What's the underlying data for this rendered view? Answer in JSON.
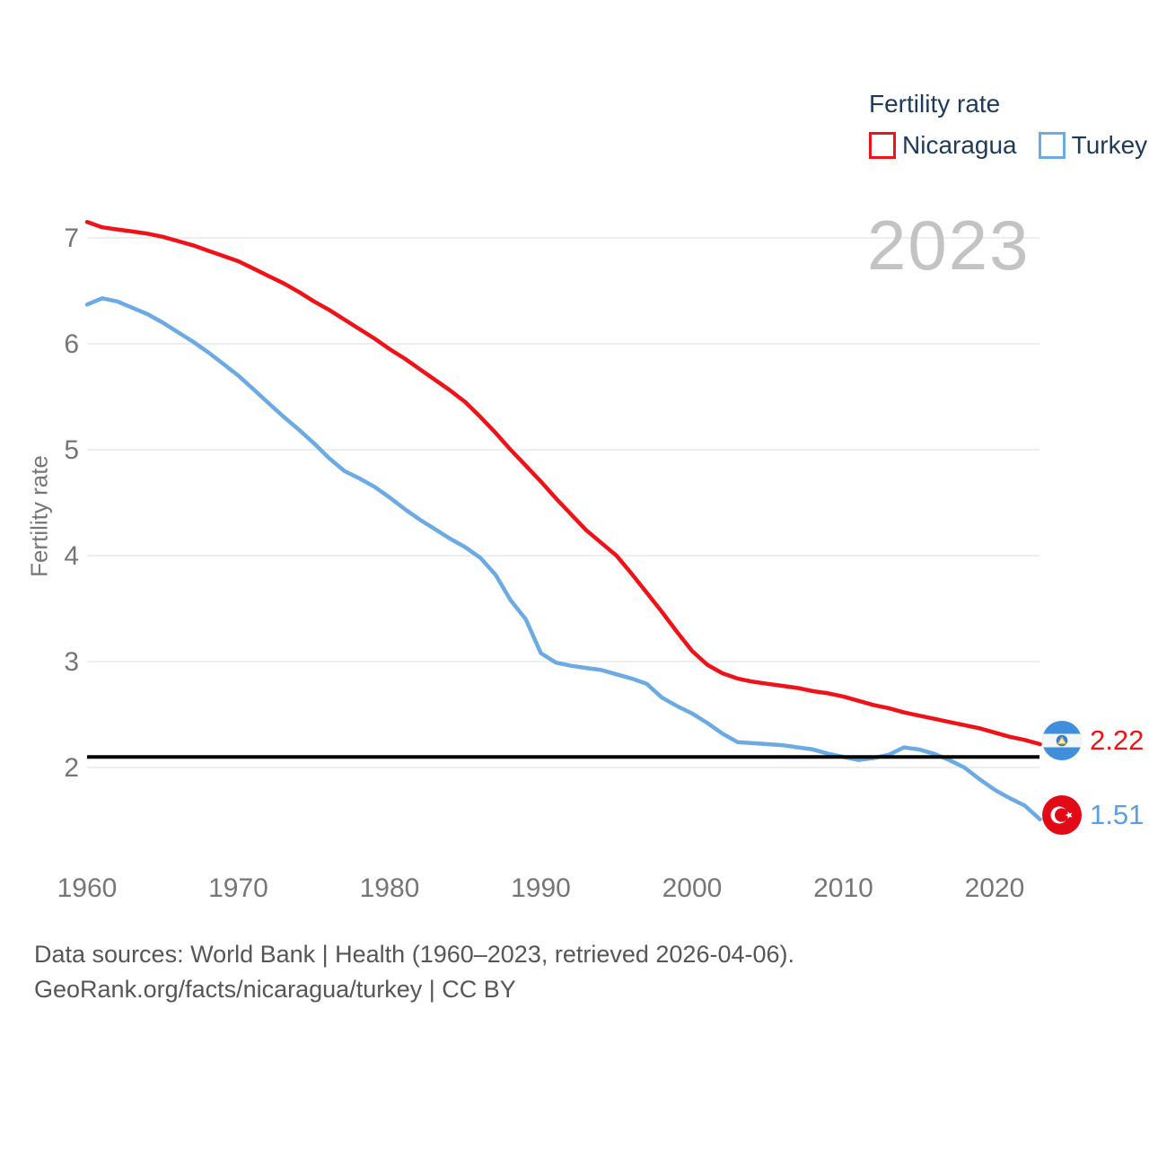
{
  "watermark": "2023",
  "y_axis_title": "Fertility rate",
  "legend": {
    "title": "Fertility rate",
    "items": [
      {
        "label": "Nicaragua",
        "color": "#ef1319"
      },
      {
        "label": "Turkey",
        "color": "#6caae4"
      }
    ]
  },
  "end_labels": {
    "nicaragua": {
      "value": "2.22",
      "flag": "nicaragua-flag"
    },
    "turkey": {
      "value": "1.51",
      "flag": "turkey-flag"
    }
  },
  "footer": {
    "line1": "Data sources: World Bank | Health (1960–2023, retrieved 2026-04-06).",
    "line2": "GeoRank.org/facts/nicaragua/turkey | CC BY"
  },
  "chart_data": {
    "type": "line",
    "title": "Fertility rate",
    "ylabel": "Fertility rate",
    "xlim": [
      1960,
      2023
    ],
    "ylim": [
      1.4,
      7.3
    ],
    "grid": "horizontal",
    "legend_position": "top-right",
    "y_ticks": [
      2,
      3,
      4,
      5,
      6,
      7
    ],
    "x_label_ticks": [
      1960,
      1970,
      1980,
      1990,
      2000,
      2010,
      2020
    ],
    "baseline": {
      "value": 2.1,
      "color": "#000000"
    },
    "years": [
      1960,
      1961,
      1962,
      1963,
      1964,
      1965,
      1966,
      1967,
      1968,
      1969,
      1970,
      1971,
      1972,
      1973,
      1974,
      1975,
      1976,
      1977,
      1978,
      1979,
      1980,
      1981,
      1982,
      1983,
      1984,
      1985,
      1986,
      1987,
      1988,
      1989,
      1990,
      1991,
      1992,
      1993,
      1994,
      1995,
      1996,
      1997,
      1998,
      1999,
      2000,
      2001,
      2002,
      2003,
      2004,
      2005,
      2006,
      2007,
      2008,
      2009,
      2010,
      2011,
      2012,
      2013,
      2014,
      2015,
      2016,
      2017,
      2018,
      2019,
      2020,
      2021,
      2022,
      2023
    ],
    "series": [
      {
        "name": "Nicaragua",
        "color": "#ef1319",
        "end_value": 2.22,
        "values": [
          7.15,
          7.1,
          7.08,
          7.06,
          7.04,
          7.01,
          6.97,
          6.93,
          6.88,
          6.83,
          6.78,
          6.71,
          6.64,
          6.57,
          6.49,
          6.4,
          6.32,
          6.23,
          6.14,
          6.05,
          5.95,
          5.86,
          5.76,
          5.66,
          5.56,
          5.45,
          5.31,
          5.16,
          5.0,
          4.85,
          4.7,
          4.54,
          4.39,
          4.24,
          4.12,
          4.0,
          3.83,
          3.65,
          3.47,
          3.28,
          3.1,
          2.97,
          2.89,
          2.84,
          2.81,
          2.79,
          2.77,
          2.75,
          2.72,
          2.7,
          2.67,
          2.63,
          2.59,
          2.56,
          2.52,
          2.49,
          2.46,
          2.43,
          2.4,
          2.37,
          2.33,
          2.29,
          2.26,
          2.22
        ]
      },
      {
        "name": "Turkey",
        "color": "#6caae4",
        "end_value": 1.51,
        "values": [
          6.37,
          6.43,
          6.4,
          6.34,
          6.28,
          6.2,
          6.11,
          6.02,
          5.92,
          5.81,
          5.7,
          5.57,
          5.44,
          5.31,
          5.19,
          5.06,
          4.92,
          4.8,
          4.73,
          4.65,
          4.55,
          4.44,
          4.34,
          4.25,
          4.16,
          4.08,
          3.98,
          3.82,
          3.58,
          3.4,
          3.08,
          2.99,
          2.96,
          2.94,
          2.92,
          2.88,
          2.84,
          2.79,
          2.66,
          2.58,
          2.51,
          2.42,
          2.32,
          2.24,
          2.23,
          2.22,
          2.21,
          2.19,
          2.17,
          2.13,
          2.1,
          2.07,
          2.09,
          2.12,
          2.19,
          2.17,
          2.13,
          2.07,
          2.0,
          1.89,
          1.79,
          1.71,
          1.64,
          1.51
        ]
      }
    ]
  }
}
